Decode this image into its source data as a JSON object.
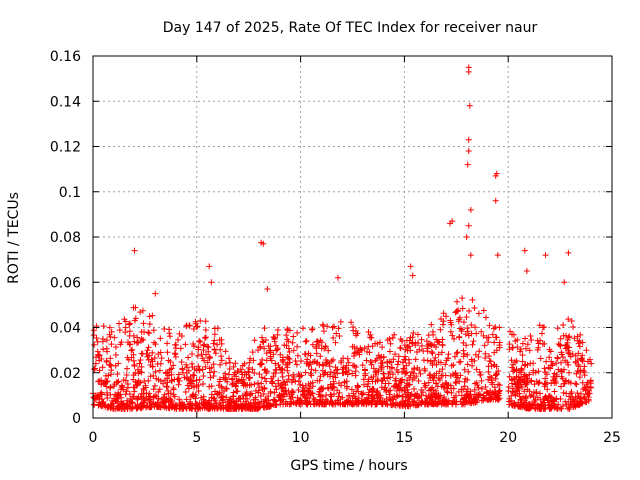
{
  "chart_data": {
    "type": "scatter",
    "title": "Day 147 of 2025, Rate Of TEC Index for receiver naur",
    "xlabel": "GPS time / hours",
    "ylabel": "ROTI / TECUs",
    "xlim": [
      0,
      25
    ],
    "ylim": [
      0,
      0.16
    ],
    "xticks": [
      "0",
      "5",
      "10",
      "15",
      "20",
      "25"
    ],
    "yticks": [
      "0",
      "0.02",
      "0.04",
      "0.06",
      "0.08",
      "0.1",
      "0.12",
      "0.14",
      "0.16"
    ],
    "grid": true,
    "marker": "+",
    "color": "#ff0000",
    "data_gap_hours": [
      19.6,
      20.0
    ],
    "outliers": [
      {
        "x": 2.0,
        "y": 0.074
      },
      {
        "x": 3.0,
        "y": 0.055
      },
      {
        "x": 5.6,
        "y": 0.067
      },
      {
        "x": 5.7,
        "y": 0.06
      },
      {
        "x": 8.1,
        "y": 0.0775
      },
      {
        "x": 8.2,
        "y": 0.077
      },
      {
        "x": 8.4,
        "y": 0.057
      },
      {
        "x": 11.8,
        "y": 0.062
      },
      {
        "x": 15.3,
        "y": 0.067
      },
      {
        "x": 15.4,
        "y": 0.063
      },
      {
        "x": 17.2,
        "y": 0.086
      },
      {
        "x": 17.3,
        "y": 0.087
      },
      {
        "x": 18.1,
        "y": 0.153
      },
      {
        "x": 18.1,
        "y": 0.155
      },
      {
        "x": 18.15,
        "y": 0.138
      },
      {
        "x": 18.1,
        "y": 0.123
      },
      {
        "x": 18.1,
        "y": 0.118
      },
      {
        "x": 18.05,
        "y": 0.112
      },
      {
        "x": 18.2,
        "y": 0.092
      },
      {
        "x": 18.1,
        "y": 0.085
      },
      {
        "x": 18.0,
        "y": 0.08
      },
      {
        "x": 18.2,
        "y": 0.072
      },
      {
        "x": 19.4,
        "y": 0.107
      },
      {
        "x": 19.45,
        "y": 0.108
      },
      {
        "x": 19.4,
        "y": 0.096
      },
      {
        "x": 19.5,
        "y": 0.072
      },
      {
        "x": 20.8,
        "y": 0.074
      },
      {
        "x": 20.9,
        "y": 0.065
      },
      {
        "x": 21.8,
        "y": 0.072
      },
      {
        "x": 22.9,
        "y": 0.073
      },
      {
        "x": 22.7,
        "y": 0.06
      }
    ],
    "series": [
      {
        "name": "ROTI",
        "baseline_envelope": [
          {
            "x": 0.0,
            "lo": 0.006,
            "hi": 0.042
          },
          {
            "x": 1.0,
            "lo": 0.004,
            "hi": 0.04
          },
          {
            "x": 2.0,
            "lo": 0.004,
            "hi": 0.05
          },
          {
            "x": 3.0,
            "lo": 0.005,
            "hi": 0.045
          },
          {
            "x": 4.0,
            "lo": 0.004,
            "hi": 0.04
          },
          {
            "x": 5.0,
            "lo": 0.004,
            "hi": 0.045
          },
          {
            "x": 6.0,
            "lo": 0.004,
            "hi": 0.04
          },
          {
            "x": 7.0,
            "lo": 0.004,
            "hi": 0.022
          },
          {
            "x": 8.0,
            "lo": 0.004,
            "hi": 0.04
          },
          {
            "x": 9.0,
            "lo": 0.006,
            "hi": 0.04
          },
          {
            "x": 10.0,
            "lo": 0.006,
            "hi": 0.04
          },
          {
            "x": 11.0,
            "lo": 0.006,
            "hi": 0.042
          },
          {
            "x": 12.0,
            "lo": 0.006,
            "hi": 0.045
          },
          {
            "x": 13.0,
            "lo": 0.006,
            "hi": 0.04
          },
          {
            "x": 14.0,
            "lo": 0.006,
            "hi": 0.034
          },
          {
            "x": 15.0,
            "lo": 0.005,
            "hi": 0.04
          },
          {
            "x": 16.0,
            "lo": 0.006,
            "hi": 0.04
          },
          {
            "x": 17.0,
            "lo": 0.006,
            "hi": 0.048
          },
          {
            "x": 18.0,
            "lo": 0.006,
            "hi": 0.055
          },
          {
            "x": 19.0,
            "lo": 0.008,
            "hi": 0.05
          },
          {
            "x": 19.6,
            "lo": 0.008,
            "hi": 0.04
          },
          {
            "x": 20.0,
            "lo": 0.006,
            "hi": 0.04
          },
          {
            "x": 21.0,
            "lo": 0.004,
            "hi": 0.04
          },
          {
            "x": 22.0,
            "lo": 0.004,
            "hi": 0.042
          },
          {
            "x": 23.0,
            "lo": 0.004,
            "hi": 0.045
          },
          {
            "x": 24.0,
            "lo": 0.008,
            "hi": 0.03
          }
        ]
      }
    ]
  }
}
